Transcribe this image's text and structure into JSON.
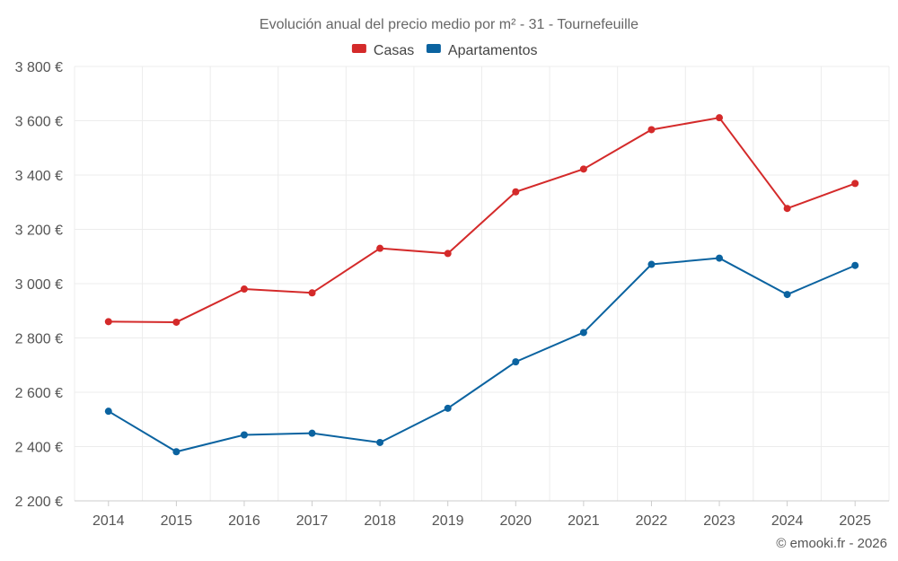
{
  "chart_data": {
    "type": "line",
    "title": "Evolución anual del precio medio por m² - 31 - Tournefeuille",
    "categories": [
      "2014",
      "2015",
      "2016",
      "2017",
      "2018",
      "2019",
      "2020",
      "2021",
      "2022",
      "2023",
      "2024",
      "2025"
    ],
    "series": [
      {
        "name": "Casas",
        "color": "#d42a2a",
        "values": [
          2860,
          2858,
          2980,
          2966,
          3130,
          3111,
          3338,
          3422,
          3567,
          3611,
          3277,
          3369
        ]
      },
      {
        "name": "Apartamentos",
        "color": "#0b63a0",
        "values": [
          2530,
          2381,
          2443,
          2449,
          2415,
          2541,
          2712,
          2820,
          3071,
          3094,
          2960,
          3067
        ]
      }
    ],
    "ylim": [
      2200,
      3800
    ],
    "yticks": [
      2200,
      2400,
      2600,
      2800,
      3000,
      3200,
      3400,
      3600,
      3800
    ],
    "ytick_labels": [
      "2 200 €",
      "2 400 €",
      "2 600 €",
      "2 800 €",
      "3 000 €",
      "3 200 €",
      "3 400 €",
      "3 600 €",
      "3 800 €"
    ],
    "xlabel": "",
    "ylabel": "",
    "grid": true,
    "legend_position": "top-center"
  },
  "credit": "© emooki.fr - 2026"
}
